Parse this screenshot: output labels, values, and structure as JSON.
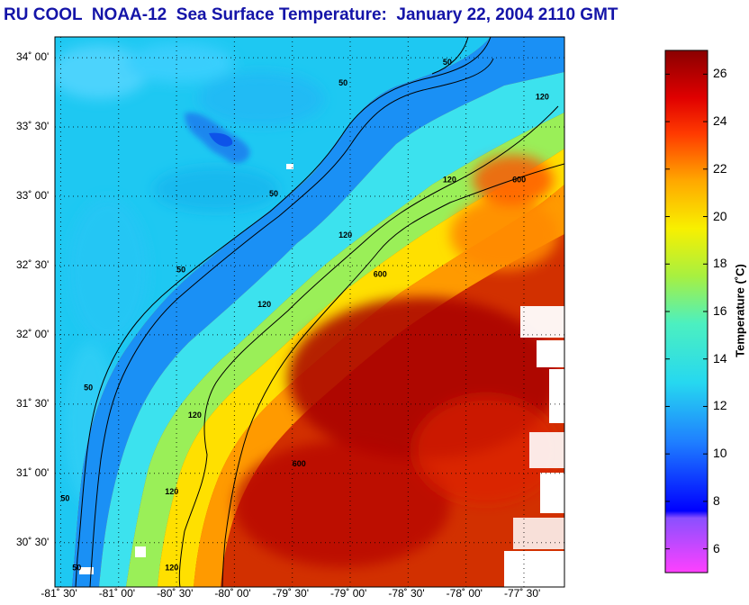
{
  "title": "RU COOL  NOAA-12  Sea Surface Temperature:  January 22, 2004 2110 GMT",
  "latitude_labels": [
    {
      "text": "34˚ 00'",
      "deg": 34.0
    },
    {
      "text": "33˚ 30'",
      "deg": 33.5
    },
    {
      "text": "33˚ 00'",
      "deg": 33.0
    },
    {
      "text": "32˚ 30'",
      "deg": 32.5
    },
    {
      "text": "32˚ 00'",
      "deg": 32.0
    },
    {
      "text": "31˚ 30'",
      "deg": 31.5
    },
    {
      "text": "31˚ 00'",
      "deg": 31.0
    },
    {
      "text": "30˚ 30'",
      "deg": 30.5
    }
  ],
  "longitude_labels": [
    {
      "text": "-81˚ 30'",
      "deg": -81.5
    },
    {
      "text": "-81˚ 00'",
      "deg": -81.0
    },
    {
      "text": "-80˚ 30'",
      "deg": -80.5
    },
    {
      "text": "-80˚ 00'",
      "deg": -80.0
    },
    {
      "text": "-79˚ 30'",
      "deg": -79.5
    },
    {
      "text": "-79˚ 00'",
      "deg": -79.0
    },
    {
      "text": "-78˚ 30'",
      "deg": -78.5
    },
    {
      "text": "-78˚ 00'",
      "deg": -78.0
    },
    {
      "text": "-77˚ 30'",
      "deg": -77.5
    }
  ],
  "extent": {
    "lon_min": -81.55,
    "lon_max": -77.15,
    "lat_min": 30.18,
    "lat_max": 34.15
  },
  "isobath_labels": [
    {
      "text": "50",
      "lon": -78.2,
      "lat": 33.95
    },
    {
      "text": "50",
      "lon": -79.1,
      "lat": 33.8
    },
    {
      "text": "50",
      "lon": -79.7,
      "lat": 33.0
    },
    {
      "text": "50",
      "lon": -80.5,
      "lat": 32.45
    },
    {
      "text": "50",
      "lon": -81.3,
      "lat": 31.6
    },
    {
      "text": "50",
      "lon": -81.5,
      "lat": 30.8
    },
    {
      "text": "50",
      "lon": -81.4,
      "lat": 30.3
    },
    {
      "text": "120",
      "lon": -77.4,
      "lat": 33.7
    },
    {
      "text": "120",
      "lon": -78.2,
      "lat": 33.1
    },
    {
      "text": "120",
      "lon": -79.1,
      "lat": 32.7
    },
    {
      "text": "120",
      "lon": -79.8,
      "lat": 32.2
    },
    {
      "text": "120",
      "lon": -80.4,
      "lat": 31.4
    },
    {
      "text": "120",
      "lon": -80.6,
      "lat": 30.85
    },
    {
      "text": "120",
      "lon": -80.6,
      "lat": 30.3
    },
    {
      "text": "600",
      "lon": -77.6,
      "lat": 33.1
    },
    {
      "text": "600",
      "lon": -78.8,
      "lat": 32.42
    },
    {
      "text": "600",
      "lon": -79.5,
      "lat": 31.05
    }
  ],
  "colorbar": {
    "title": "Temperature (˚C)",
    "min": 5,
    "max": 27,
    "tick_values": [
      6,
      8,
      10,
      12,
      14,
      16,
      18,
      20,
      22,
      24,
      26
    ],
    "tick_labels": [
      "6",
      "8",
      "10",
      "12",
      "14",
      "16",
      "18",
      "20",
      "22",
      "24",
      "26"
    ],
    "color_stops": [
      {
        "value": 5,
        "color": "#ff40ff"
      },
      {
        "value": 7.3,
        "color": "#8a50ff"
      },
      {
        "value": 7.6,
        "color": "#0000ff"
      },
      {
        "value": 10.5,
        "color": "#1f7fff"
      },
      {
        "value": 13,
        "color": "#26d8f0"
      },
      {
        "value": 15.5,
        "color": "#4cf0c0"
      },
      {
        "value": 17.5,
        "color": "#a8f040"
      },
      {
        "value": 19.5,
        "color": "#f8f000"
      },
      {
        "value": 21.5,
        "color": "#ffa800"
      },
      {
        "value": 23.5,
        "color": "#ff3a00"
      },
      {
        "value": 25,
        "color": "#e00000"
      },
      {
        "value": 27,
        "color": "#8a0000"
      }
    ]
  },
  "colors": {
    "title": "#1414a8",
    "land": "#1ec8f2",
    "grid": "#000000",
    "cloud": "#ffffff"
  }
}
